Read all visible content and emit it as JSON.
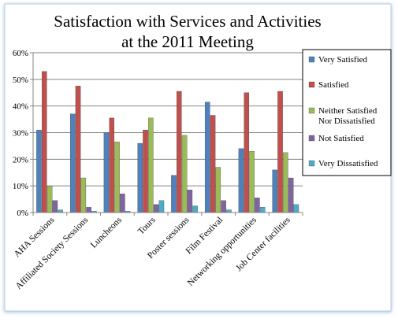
{
  "chart_data": {
    "type": "bar",
    "title": [
      "Satisfaction with Services and Activities",
      "at the 2011 Meeting"
    ],
    "categories": [
      "AHA Sessions",
      "Affiliated Society Sessions",
      "Luncheons",
      "Tours",
      "Poster sessions",
      "Film Festival",
      "Networking opportunities",
      "Job Center facilities"
    ],
    "ylim": [
      0,
      60
    ],
    "yticks": [
      "0%",
      "10%",
      "20%",
      "30%",
      "40%",
      "50%",
      "60%"
    ],
    "ytick_values": [
      0,
      10,
      20,
      30,
      40,
      50,
      60
    ],
    "legend_position": "right",
    "series": [
      {
        "name": "Very Satisfied",
        "color": "#4F81BD",
        "values": [
          31,
          37,
          30,
          26,
          14,
          41.5,
          24,
          16
        ]
      },
      {
        "name": "Satisfied",
        "color": "#C0504D",
        "values": [
          53,
          47.5,
          35.5,
          31,
          45.5,
          36.5,
          45,
          45.5
        ]
      },
      {
        "name_lines": [
          "Neither Satisfied",
          "Nor Dissatisfied"
        ],
        "color": "#9BBB59",
        "values": [
          10,
          13,
          26.5,
          35.5,
          29,
          17,
          23,
          22.5
        ]
      },
      {
        "name": "Not Satisfied",
        "color": "#8064A2",
        "values": [
          4.5,
          2,
          7,
          3,
          8.5,
          4.5,
          5.5,
          13
        ]
      },
      {
        "name": "Very Dissatisfied",
        "color": "#4BACC6",
        "values": [
          1,
          0.5,
          0.5,
          4.5,
          2.5,
          1,
          2,
          3
        ]
      }
    ]
  }
}
